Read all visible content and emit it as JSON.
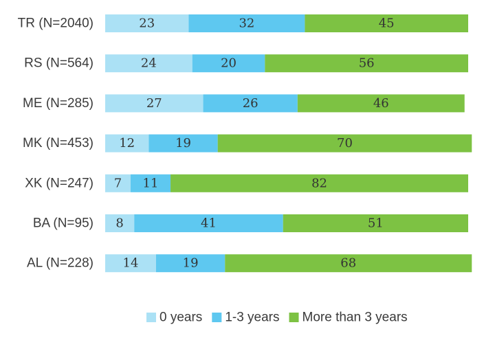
{
  "chart_data": {
    "type": "bar",
    "orientation": "horizontal",
    "stacked": true,
    "categories": [
      "TR (N=2040)",
      "RS (N=564)",
      "ME (N=285)",
      "MK (N=453)",
      "XK (N=247)",
      "BA (N=95)",
      "AL (N=228)"
    ],
    "series": [
      {
        "name": "0 years",
        "color": "#abe1f5",
        "values": [
          23,
          24,
          27,
          12,
          7,
          8,
          14
        ]
      },
      {
        "name": "1-3 years",
        "color": "#5ec8f0",
        "values": [
          32,
          20,
          26,
          19,
          11,
          41,
          19
        ]
      },
      {
        "name": "More than 3 years",
        "color": "#7dc243",
        "values": [
          45,
          56,
          46,
          70,
          82,
          51,
          68
        ]
      }
    ],
    "xlim": [
      0,
      100
    ],
    "grid": false,
    "data_labels": true,
    "legend_position": "bottom-left",
    "title": "",
    "xlabel": "",
    "ylabel": ""
  }
}
